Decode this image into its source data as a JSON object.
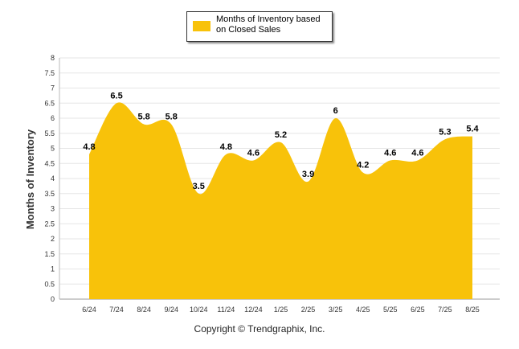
{
  "chart_data": {
    "type": "area",
    "categories": [
      "6/24",
      "7/24",
      "8/24",
      "9/24",
      "10/24",
      "11/24",
      "12/24",
      "1/25",
      "2/25",
      "3/25",
      "4/25",
      "5/25",
      "6/25",
      "7/25",
      "8/25"
    ],
    "series": [
      {
        "name": "Months of Inventory based on Closed Sales",
        "values": [
          4.8,
          6.5,
          5.8,
          5.8,
          3.5,
          4.8,
          4.6,
          5.2,
          3.9,
          6,
          4.2,
          4.6,
          4.6,
          5.3,
          5.4
        ]
      }
    ],
    "ylabel": "Months of Inventory",
    "ylim": [
      0,
      8
    ],
    "yticks": [
      "0",
      "0.5",
      "1",
      "1.5",
      "2",
      "2.5",
      "3",
      "3.5",
      "4",
      "4.5",
      "5",
      "5.5",
      "6",
      "6.5",
      "7",
      "7.5",
      "8"
    ],
    "grid": true,
    "legend_position": "top-center",
    "color": "#F8C20A"
  },
  "legend": {
    "label": "Months of Inventory based on Closed Sales"
  },
  "footer": {
    "copyright": "Copyright © Trendgraphix, Inc."
  }
}
